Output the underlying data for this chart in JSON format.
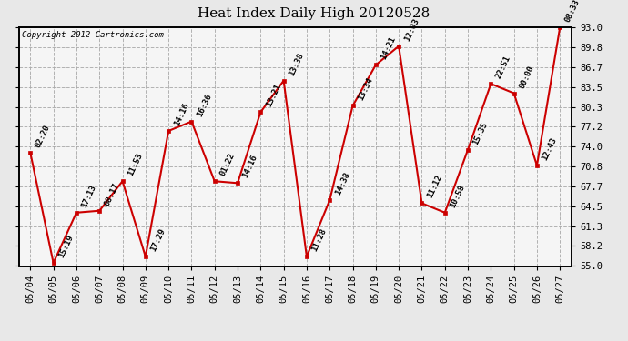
{
  "title": "Heat Index Daily High 20120528",
  "copyright": "Copyright 2012 Cartronics.com",
  "outer_bg": "#e8e8e8",
  "plot_bg_color": "#f5f5f5",
  "line_color": "#cc0000",
  "marker_color": "#cc0000",
  "grid_color": "#aaaaaa",
  "dates": [
    "05/04",
    "05/05",
    "05/06",
    "05/07",
    "05/08",
    "05/09",
    "05/10",
    "05/11",
    "05/12",
    "05/13",
    "05/14",
    "05/15",
    "05/16",
    "05/17",
    "05/18",
    "05/19",
    "05/20",
    "05/21",
    "05/22",
    "05/23",
    "05/24",
    "05/25",
    "05/26",
    "05/27"
  ],
  "values": [
    73.0,
    55.5,
    63.5,
    63.8,
    68.5,
    56.5,
    76.5,
    78.0,
    68.5,
    68.2,
    79.5,
    84.5,
    56.5,
    65.5,
    80.5,
    87.0,
    90.0,
    65.0,
    63.5,
    73.5,
    84.0,
    82.5,
    71.0,
    93.0
  ],
  "time_labels": [
    "02:20",
    "15:19",
    "17:13",
    "08:17",
    "11:53",
    "17:29",
    "14:16",
    "16:36",
    "01:22",
    "14:16",
    "13:21",
    "13:38",
    "11:28",
    "14:38",
    "13:34",
    "14:21",
    "12:03",
    "11:12",
    "10:58",
    "15:35",
    "22:51",
    "00:00",
    "12:43",
    "08:33"
  ],
  "ylim": [
    55.0,
    93.0
  ],
  "ytick_values": [
    55.0,
    58.2,
    61.3,
    64.5,
    67.7,
    70.8,
    74.0,
    77.2,
    80.3,
    83.5,
    86.7,
    89.8,
    93.0
  ],
  "ytick_labels": [
    "55.0",
    "58.2",
    "61.3",
    "64.5",
    "67.7",
    "70.8",
    "74.0",
    "77.2",
    "80.3",
    "83.5",
    "86.7",
    "89.8",
    "93.0"
  ],
  "title_fontsize": 11,
  "label_fontsize": 6.5,
  "tick_fontsize": 7.5
}
